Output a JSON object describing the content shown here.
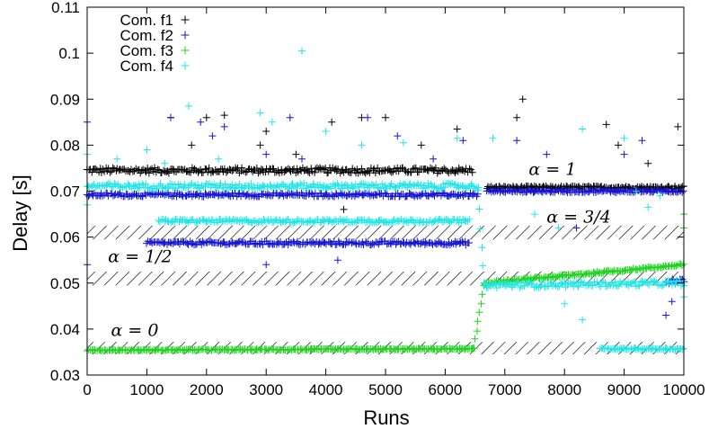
{
  "chart_data": {
    "type": "scatter",
    "title": "",
    "xlabel": "Runs",
    "ylabel": "Delay [s]",
    "xlim": [
      0,
      10000
    ],
    "ylim": [
      0.03,
      0.11
    ],
    "x_ticks": [
      "0",
      "1000",
      "2000",
      "3000",
      "4000",
      "5000",
      "6000",
      "7000",
      "8000",
      "9000",
      "10000"
    ],
    "y_ticks": [
      "0.03",
      "0.04",
      "0.05",
      "0.06",
      "0.07",
      "0.08",
      "0.09",
      "0.1",
      "0.11"
    ],
    "grid": false,
    "legend_position": "top-left",
    "marker": "+",
    "series": [
      {
        "name": "Com. f1",
        "color": "#000000",
        "segments": [
          {
            "x_start": 0,
            "x_end": 6450,
            "y_start": 0.0745,
            "y_end": 0.0745,
            "spread": 0.0006
          },
          {
            "x_start": 6700,
            "x_end": 10000,
            "y_start": 0.0708,
            "y_end": 0.0708,
            "spread": 0.0003
          }
        ],
        "outliers": [
          {
            "x": 1400,
            "y": 0.086
          },
          {
            "x": 1750,
            "y": 0.08
          },
          {
            "x": 2000,
            "y": 0.086
          },
          {
            "x": 2300,
            "y": 0.0865
          },
          {
            "x": 2900,
            "y": 0.08
          },
          {
            "x": 3000,
            "y": 0.083
          },
          {
            "x": 3500,
            "y": 0.078
          },
          {
            "x": 4100,
            "y": 0.085
          },
          {
            "x": 4300,
            "y": 0.066
          },
          {
            "x": 4600,
            "y": 0.086
          },
          {
            "x": 5000,
            "y": 0.086
          },
          {
            "x": 5600,
            "y": 0.08
          },
          {
            "x": 6200,
            "y": 0.0835
          },
          {
            "x": 7200,
            "y": 0.086
          },
          {
            "x": 7300,
            "y": 0.09
          },
          {
            "x": 8700,
            "y": 0.0845
          },
          {
            "x": 8900,
            "y": 0.08
          },
          {
            "x": 9400,
            "y": 0.076
          },
          {
            "x": 9900,
            "y": 0.084
          }
        ]
      },
      {
        "name": "Com. f2",
        "color": "#1414d2",
        "segments": [
          {
            "x_start": 0,
            "x_end": 6550,
            "y_start": 0.0692,
            "y_end": 0.0692,
            "spread": 0.0004
          },
          {
            "x_start": 1000,
            "x_end": 6400,
            "y_start": 0.0587,
            "y_end": 0.0587,
            "spread": 0.0004
          },
          {
            "x_start": 6700,
            "x_end": 10000,
            "y_start": 0.07,
            "y_end": 0.07,
            "spread": 0.0003
          },
          {
            "x_start": 9700,
            "x_end": 10000,
            "y_start": 0.0505,
            "y_end": 0.0505,
            "spread": 0.0006
          }
        ],
        "outliers": [
          {
            "x": 0,
            "y": 0.085
          },
          {
            "x": 0,
            "y": 0.054
          },
          {
            "x": 1400,
            "y": 0.086
          },
          {
            "x": 1900,
            "y": 0.085
          },
          {
            "x": 2100,
            "y": 0.082
          },
          {
            "x": 2300,
            "y": 0.084
          },
          {
            "x": 3000,
            "y": 0.078
          },
          {
            "x": 3400,
            "y": 0.086
          },
          {
            "x": 3600,
            "y": 0.077
          },
          {
            "x": 4200,
            "y": 0.055
          },
          {
            "x": 4700,
            "y": 0.086
          },
          {
            "x": 5200,
            "y": 0.082
          },
          {
            "x": 5800,
            "y": 0.077
          },
          {
            "x": 6300,
            "y": 0.081
          },
          {
            "x": 7200,
            "y": 0.081
          },
          {
            "x": 7700,
            "y": 0.078
          },
          {
            "x": 8200,
            "y": 0.062
          },
          {
            "x": 9000,
            "y": 0.078
          },
          {
            "x": 9300,
            "y": 0.081
          },
          {
            "x": 9800,
            "y": 0.046
          },
          {
            "x": 3000,
            "y": 0.054
          },
          {
            "x": 9700,
            "y": 0.043
          }
        ]
      },
      {
        "name": "Com. f3",
        "color": "#1ed41e",
        "segments": [
          {
            "x_start": 0,
            "x_end": 6480,
            "y_start": 0.0354,
            "y_end": 0.0357,
            "spread": 0.00015
          },
          {
            "x_start": 6480,
            "x_end": 6650,
            "y_start": 0.0357,
            "y_end": 0.0495,
            "spread": 0.0002
          },
          {
            "x_start": 6650,
            "x_end": 10000,
            "y_start": 0.05,
            "y_end": 0.054,
            "spread": 0.00025
          }
        ],
        "outliers": [
          {
            "x": 10000,
            "y": 0.062
          },
          {
            "x": 10000,
            "y": 0.065
          }
        ]
      },
      {
        "name": "Com. f4",
        "color": "#22e6e6",
        "segments": [
          {
            "x_start": 0,
            "x_end": 6550,
            "y_start": 0.0711,
            "y_end": 0.0711,
            "spread": 0.0006
          },
          {
            "x_start": 6550,
            "x_end": 6660,
            "y_start": 0.07,
            "y_end": 0.05,
            "spread": 0.0003
          },
          {
            "x_start": 1200,
            "x_end": 6400,
            "y_start": 0.0635,
            "y_end": 0.0635,
            "spread": 0.0004
          },
          {
            "x_start": 6650,
            "x_end": 10000,
            "y_start": 0.0495,
            "y_end": 0.05,
            "spread": 0.0006
          },
          {
            "x_start": 8600,
            "x_end": 10000,
            "y_start": 0.0357,
            "y_end": 0.0357,
            "spread": 0.0002
          }
        ],
        "outliers": [
          {
            "x": 0,
            "y": 0.078
          },
          {
            "x": 0,
            "y": 0.067
          },
          {
            "x": 500,
            "y": 0.077
          },
          {
            "x": 1000,
            "y": 0.079
          },
          {
            "x": 1300,
            "y": 0.076
          },
          {
            "x": 1700,
            "y": 0.0885
          },
          {
            "x": 2200,
            "y": 0.077
          },
          {
            "x": 2900,
            "y": 0.087
          },
          {
            "x": 3100,
            "y": 0.085
          },
          {
            "x": 3600,
            "y": 0.1005
          },
          {
            "x": 4000,
            "y": 0.083
          },
          {
            "x": 4600,
            "y": 0.08
          },
          {
            "x": 5300,
            "y": 0.0805
          },
          {
            "x": 6200,
            "y": 0.0815
          },
          {
            "x": 6800,
            "y": 0.0815
          },
          {
            "x": 8300,
            "y": 0.0835
          },
          {
            "x": 9000,
            "y": 0.0815
          },
          {
            "x": 9200,
            "y": 0.07
          },
          {
            "x": 7500,
            "y": 0.065
          },
          {
            "x": 8000,
            "y": 0.0455
          },
          {
            "x": 8300,
            "y": 0.042
          },
          {
            "x": 9400,
            "y": 0.0665
          },
          {
            "x": 7900,
            "y": 0.062
          },
          {
            "x": 9600,
            "y": 0.069
          },
          {
            "x": 10000,
            "y": 0.047
          }
        ]
      }
    ],
    "annotations": [
      {
        "text": "α = 1",
        "x": 7400,
        "y": 0.0735
      },
      {
        "text": "α = 3/4",
        "x": 7700,
        "y": 0.0632
      },
      {
        "text": "α = 1/2",
        "x": 350,
        "y": 0.0545
      },
      {
        "text": "α = 0",
        "x": 400,
        "y": 0.0385
      }
    ],
    "hatched_bands": [
      {
        "x_start": 0,
        "x_end": 10000,
        "y_low": 0.0595,
        "y_high": 0.0625
      },
      {
        "x_start": 0,
        "x_end": 10000,
        "y_low": 0.0495,
        "y_high": 0.0525
      },
      {
        "x_start": 0,
        "x_end": 10000,
        "y_low": 0.0345,
        "y_high": 0.0372
      }
    ]
  }
}
